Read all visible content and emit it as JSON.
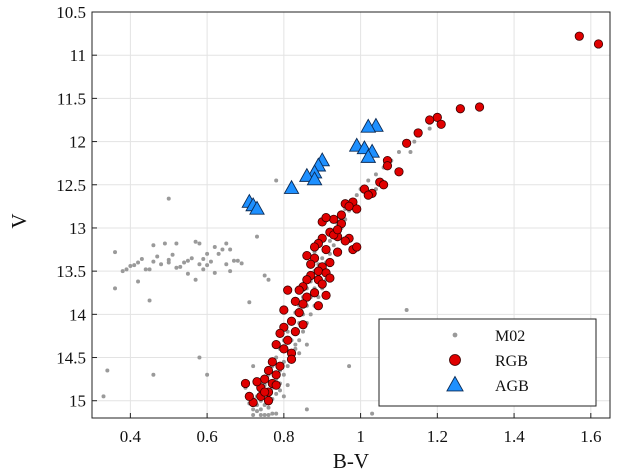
{
  "chart_data": {
    "type": "scatter",
    "title": "",
    "xlabel": "B-V",
    "ylabel": "V",
    "xlim": [
      0.3,
      1.65
    ],
    "ylim": [
      10.5,
      15.2
    ],
    "y_inverted": true,
    "grid": true,
    "legend_position": "bottom-right",
    "x_ticks": [
      "0.4",
      "0.6",
      "0.8",
      "1",
      "1.2",
      "1.4",
      "1.6"
    ],
    "x_tick_values": [
      0.4,
      0.6,
      0.8,
      1.0,
      1.2,
      1.4,
      1.6
    ],
    "y_ticks": [
      "10.5",
      "11",
      "11.5",
      "12",
      "12.5",
      "13",
      "13.5",
      "14",
      "14.5",
      "15"
    ],
    "y_tick_values": [
      10.5,
      11,
      11.5,
      12,
      12.5,
      13,
      13.5,
      14,
      14.5,
      15
    ],
    "colors": {
      "M02": "#9a9a9a",
      "RGB": "#e00000",
      "AGB": "#1e90ff"
    },
    "series": [
      {
        "name": "M02",
        "marker": "dot",
        "points": [
          [
            0.36,
            13.28
          ],
          [
            0.36,
            13.7
          ],
          [
            0.38,
            13.5
          ],
          [
            0.39,
            13.48
          ],
          [
            0.4,
            13.44
          ],
          [
            0.41,
            13.43
          ],
          [
            0.42,
            13.4
          ],
          [
            0.42,
            13.62
          ],
          [
            0.43,
            13.36
          ],
          [
            0.44,
            13.48
          ],
          [
            0.45,
            13.84
          ],
          [
            0.45,
            13.48
          ],
          [
            0.46,
            13.2
          ],
          [
            0.46,
            13.39
          ],
          [
            0.47,
            13.33
          ],
          [
            0.48,
            13.42
          ],
          [
            0.49,
            13.18
          ],
          [
            0.5,
            13.37
          ],
          [
            0.5,
            13.4
          ],
          [
            0.51,
            13.31
          ],
          [
            0.52,
            13.46
          ],
          [
            0.52,
            13.18
          ],
          [
            0.53,
            13.45
          ],
          [
            0.54,
            13.4
          ],
          [
            0.55,
            13.53
          ],
          [
            0.55,
            13.38
          ],
          [
            0.56,
            13.35
          ],
          [
            0.57,
            13.6
          ],
          [
            0.57,
            13.16
          ],
          [
            0.58,
            13.42
          ],
          [
            0.58,
            13.18
          ],
          [
            0.59,
            13.36
          ],
          [
            0.59,
            13.48
          ],
          [
            0.6,
            13.43
          ],
          [
            0.6,
            13.3
          ],
          [
            0.61,
            13.39
          ],
          [
            0.62,
            13.22
          ],
          [
            0.62,
            13.52
          ],
          [
            0.63,
            13.3
          ],
          [
            0.64,
            13.25
          ],
          [
            0.65,
            13.18
          ],
          [
            0.65,
            13.42
          ],
          [
            0.66,
            13.5
          ],
          [
            0.67,
            13.38
          ],
          [
            0.68,
            13.38
          ],
          [
            0.69,
            13.41
          ],
          [
            0.34,
            14.65
          ],
          [
            0.33,
            14.95
          ],
          [
            0.46,
            14.7
          ],
          [
            0.5,
            12.66
          ],
          [
            0.6,
            14.7
          ],
          [
            0.58,
            14.5
          ],
          [
            0.75,
            13.55
          ],
          [
            0.76,
            13.6
          ],
          [
            0.73,
            13.1
          ],
          [
            0.71,
            13.86
          ],
          [
            0.66,
            13.25
          ],
          [
            0.71,
            15.03
          ],
          [
            0.72,
            14.98
          ],
          [
            0.72,
            15.1
          ],
          [
            0.73,
            14.95
          ],
          [
            0.73,
            15.05
          ],
          [
            0.73,
            15.12
          ],
          [
            0.74,
            14.88
          ],
          [
            0.74,
            15.0
          ],
          [
            0.74,
            15.1
          ],
          [
            0.75,
            14.92
          ],
          [
            0.75,
            15.05
          ],
          [
            0.75,
            14.82
          ],
          [
            0.76,
            14.9
          ],
          [
            0.76,
            15.08
          ],
          [
            0.76,
            14.7
          ],
          [
            0.77,
            14.85
          ],
          [
            0.77,
            14.98
          ],
          [
            0.77,
            14.6
          ],
          [
            0.78,
            14.75
          ],
          [
            0.78,
            14.92
          ],
          [
            0.78,
            14.5
          ],
          [
            0.79,
            14.65
          ],
          [
            0.79,
            14.8
          ],
          [
            0.79,
            14.4
          ],
          [
            0.8,
            14.55
          ],
          [
            0.8,
            14.3
          ],
          [
            0.8,
            14.7
          ],
          [
            0.81,
            14.42
          ],
          [
            0.81,
            14.2
          ],
          [
            0.81,
            14.6
          ],
          [
            0.82,
            14.3
          ],
          [
            0.82,
            14.1
          ],
          [
            0.82,
            14.5
          ],
          [
            0.83,
            14.2
          ],
          [
            0.83,
            13.98
          ],
          [
            0.83,
            14.4
          ],
          [
            0.84,
            14.1
          ],
          [
            0.84,
            13.9
          ],
          [
            0.84,
            14.3
          ],
          [
            0.85,
            14.0
          ],
          [
            0.85,
            13.8
          ],
          [
            0.85,
            14.2
          ],
          [
            0.86,
            13.9
          ],
          [
            0.86,
            13.7
          ],
          [
            0.86,
            14.1
          ],
          [
            0.87,
            13.8
          ],
          [
            0.87,
            13.6
          ],
          [
            0.87,
            14.0
          ],
          [
            0.88,
            13.7
          ],
          [
            0.88,
            13.5
          ],
          [
            0.88,
            13.9
          ],
          [
            0.89,
            13.6
          ],
          [
            0.89,
            13.42
          ],
          [
            0.89,
            13.8
          ],
          [
            0.9,
            13.5
          ],
          [
            0.9,
            13.35
          ],
          [
            0.9,
            13.7
          ],
          [
            0.91,
            13.4
          ],
          [
            0.91,
            13.25
          ],
          [
            0.91,
            13.6
          ],
          [
            0.92,
            13.3
          ],
          [
            0.92,
            13.15
          ],
          [
            0.93,
            13.2
          ],
          [
            0.93,
            13.05
          ],
          [
            0.94,
            13.1
          ],
          [
            0.94,
            12.95
          ],
          [
            0.95,
            13.0
          ],
          [
            0.95,
            12.85
          ],
          [
            0.96,
            12.9
          ],
          [
            0.96,
            12.78
          ],
          [
            0.97,
            12.8
          ],
          [
            0.98,
            12.72
          ],
          [
            0.99,
            12.62
          ],
          [
            1.0,
            12.55
          ],
          [
            1.02,
            12.45
          ],
          [
            1.04,
            12.38
          ],
          [
            1.06,
            12.3
          ],
          [
            1.08,
            12.22
          ],
          [
            1.1,
            12.12
          ],
          [
            1.14,
            12.0
          ],
          [
            1.18,
            11.85
          ],
          [
            1.13,
            12.12
          ],
          [
            1.04,
            12.55
          ],
          [
            1.02,
            12.6
          ],
          [
            0.79,
            14.88
          ],
          [
            0.8,
            14.95
          ],
          [
            0.81,
            14.82
          ],
          [
            0.7,
            14.85
          ],
          [
            0.77,
            15.15
          ],
          [
            0.76,
            15.18
          ],
          [
            0.78,
            15.15
          ],
          [
            0.74,
            15.18
          ],
          [
            0.72,
            15.2
          ],
          [
            0.75,
            15.2
          ],
          [
            0.83,
            14.35
          ],
          [
            0.84,
            14.45
          ],
          [
            0.86,
            14.35
          ],
          [
            0.85,
            13.72
          ],
          [
            0.87,
            13.62
          ],
          [
            0.88,
            13.28
          ],
          [
            0.78,
            12.45
          ],
          [
            0.97,
            14.6
          ],
          [
            1.03,
            15.15
          ],
          [
            1.12,
            13.95
          ],
          [
            0.86,
            15.1
          ],
          [
            0.72,
            14.6
          ]
        ]
      },
      {
        "name": "RGB",
        "marker": "circle",
        "points": [
          [
            1.57,
            10.78
          ],
          [
            1.62,
            10.87
          ],
          [
            1.31,
            11.6
          ],
          [
            1.26,
            11.62
          ],
          [
            1.2,
            11.72
          ],
          [
            1.18,
            11.75
          ],
          [
            1.21,
            11.8
          ],
          [
            1.15,
            11.9
          ],
          [
            1.12,
            12.02
          ],
          [
            1.1,
            12.35
          ],
          [
            1.07,
            12.22
          ],
          [
            1.07,
            12.28
          ],
          [
            1.05,
            12.47
          ],
          [
            1.06,
            12.5
          ],
          [
            1.01,
            12.55
          ],
          [
            1.03,
            12.6
          ],
          [
            0.98,
            12.7
          ],
          [
            0.96,
            12.72
          ],
          [
            0.97,
            12.75
          ],
          [
            1.02,
            12.62
          ],
          [
            0.99,
            12.78
          ],
          [
            0.93,
            12.9
          ],
          [
            0.95,
            12.95
          ],
          [
            0.9,
            12.93
          ],
          [
            0.92,
            13.05
          ],
          [
            0.94,
            13.1
          ],
          [
            0.97,
            13.12
          ],
          [
            0.9,
            13.12
          ],
          [
            0.89,
            13.18
          ],
          [
            0.88,
            13.22
          ],
          [
            0.91,
            13.25
          ],
          [
            0.94,
            13.28
          ],
          [
            0.98,
            13.25
          ],
          [
            0.86,
            13.32
          ],
          [
            0.88,
            13.35
          ],
          [
            0.92,
            13.4
          ],
          [
            0.9,
            13.45
          ],
          [
            0.89,
            13.5
          ],
          [
            0.91,
            13.52
          ],
          [
            0.87,
            13.55
          ],
          [
            0.89,
            13.6
          ],
          [
            0.86,
            13.6
          ],
          [
            0.9,
            13.65
          ],
          [
            0.88,
            13.75
          ],
          [
            0.91,
            13.78
          ],
          [
            0.86,
            13.8
          ],
          [
            0.83,
            13.85
          ],
          [
            0.85,
            13.88
          ],
          [
            0.89,
            13.9
          ],
          [
            0.8,
            13.95
          ],
          [
            0.84,
            13.98
          ],
          [
            0.82,
            14.08
          ],
          [
            0.85,
            14.12
          ],
          [
            0.8,
            14.15
          ],
          [
            0.83,
            14.2
          ],
          [
            0.81,
            14.3
          ],
          [
            0.78,
            14.35
          ],
          [
            0.8,
            14.4
          ],
          [
            0.82,
            14.45
          ],
          [
            0.77,
            14.55
          ],
          [
            0.79,
            14.6
          ],
          [
            0.76,
            14.65
          ],
          [
            0.78,
            14.7
          ],
          [
            0.75,
            14.75
          ],
          [
            0.77,
            14.8
          ],
          [
            0.74,
            14.85
          ],
          [
            0.76,
            14.9
          ],
          [
            0.74,
            14.95
          ],
          [
            0.76,
            15.0
          ],
          [
            0.72,
            15.02
          ],
          [
            0.93,
            13.08
          ],
          [
            0.96,
            13.15
          ],
          [
            0.99,
            13.22
          ],
          [
            0.87,
            13.42
          ],
          [
            0.92,
            13.58
          ],
          [
            0.85,
            13.68
          ],
          [
            0.81,
            13.72
          ],
          [
            0.84,
            13.72
          ],
          [
            0.79,
            14.22
          ],
          [
            0.82,
            14.52
          ],
          [
            0.75,
            14.9
          ],
          [
            0.78,
            14.82
          ],
          [
            0.7,
            14.8
          ],
          [
            0.71,
            14.95
          ],
          [
            0.73,
            14.78
          ],
          [
            0.91,
            12.88
          ],
          [
            0.95,
            12.85
          ],
          [
            0.94,
            13.02
          ]
        ]
      },
      {
        "name": "AGB",
        "marker": "triangle",
        "points": [
          [
            1.04,
            11.82
          ],
          [
            1.02,
            11.83
          ],
          [
            0.99,
            12.05
          ],
          [
            1.01,
            12.08
          ],
          [
            1.03,
            12.12
          ],
          [
            1.02,
            12.18
          ],
          [
            0.9,
            12.22
          ],
          [
            0.89,
            12.28
          ],
          [
            0.88,
            12.36
          ],
          [
            0.86,
            12.4
          ],
          [
            0.88,
            12.44
          ],
          [
            0.82,
            12.54
          ],
          [
            0.71,
            12.7
          ],
          [
            0.72,
            12.74
          ],
          [
            0.73,
            12.78
          ]
        ]
      }
    ]
  }
}
